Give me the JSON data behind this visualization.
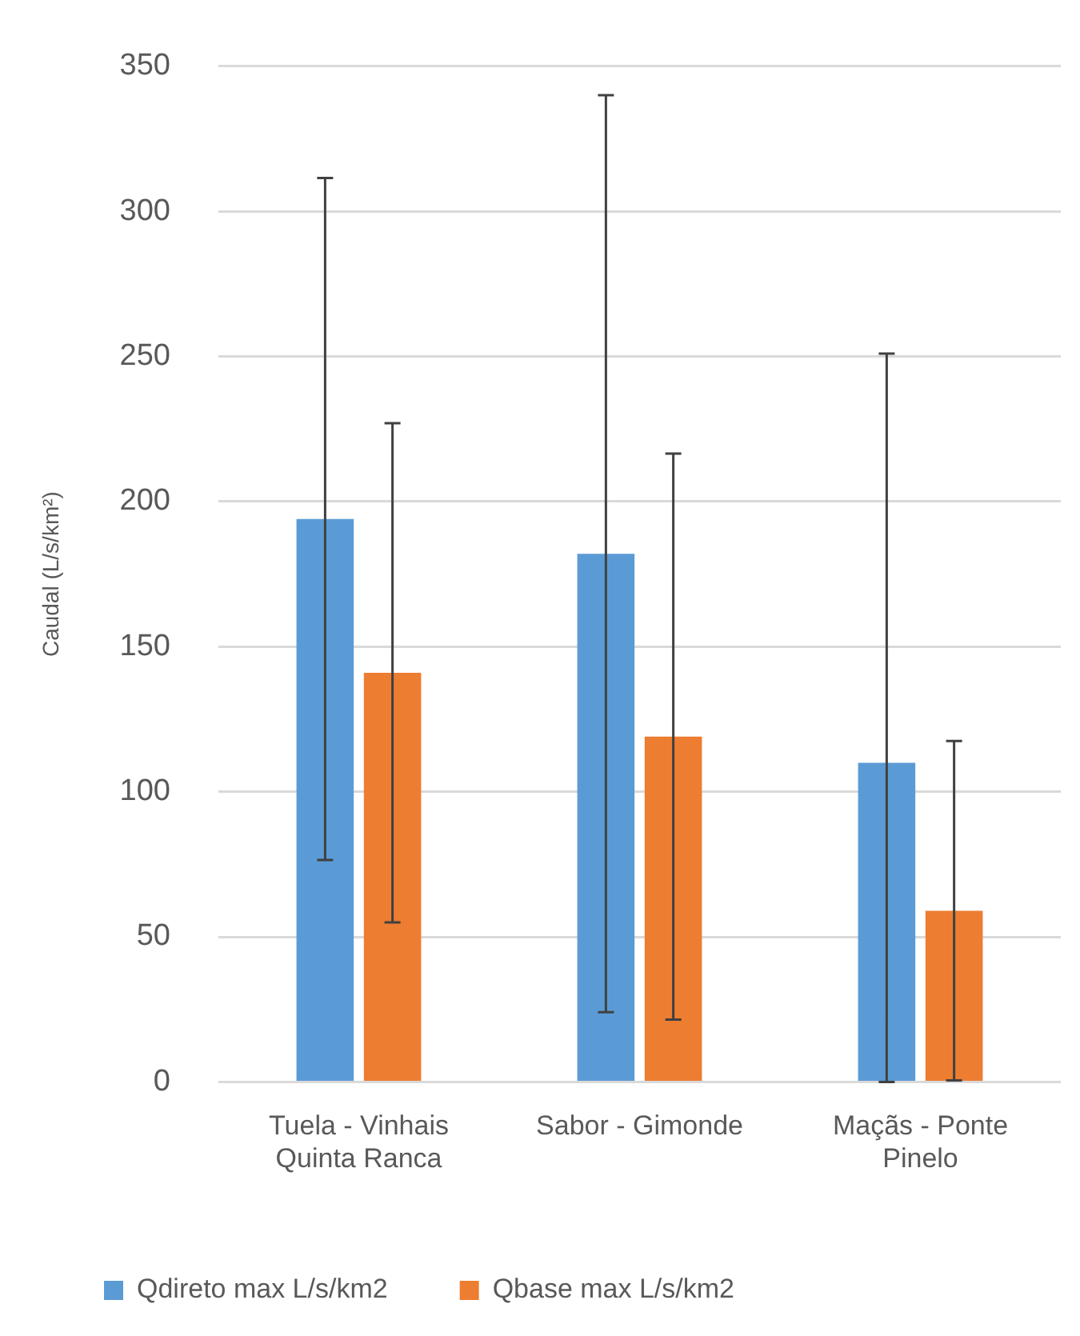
{
  "chart_data": {
    "type": "bar",
    "ylabel": "Caudal (L/s/km²)",
    "categories": [
      "Tuela - Vinhais Quinta Ranca",
      "Sabor - Gimonde",
      "Maçãs - Ponte Pinelo"
    ],
    "series": [
      {
        "name": "Qdireto max L/s/km2",
        "color": "#5b9bd5",
        "values": [
          194,
          182,
          110
        ],
        "errors": [
          117.5,
          158,
          [
            0,
            251
          ]
        ]
      },
      {
        "name": "Qbase max L/s/km2",
        "color": "#ed7d31",
        "values": [
          141,
          119,
          59
        ],
        "errors": [
          86,
          97.5,
          58.5
        ]
      }
    ],
    "ylim": [
      0,
      350
    ],
    "yticks": [
      0,
      50,
      100,
      150,
      200,
      250,
      300,
      350
    ],
    "grid": "y",
    "legend": "bottom"
  }
}
